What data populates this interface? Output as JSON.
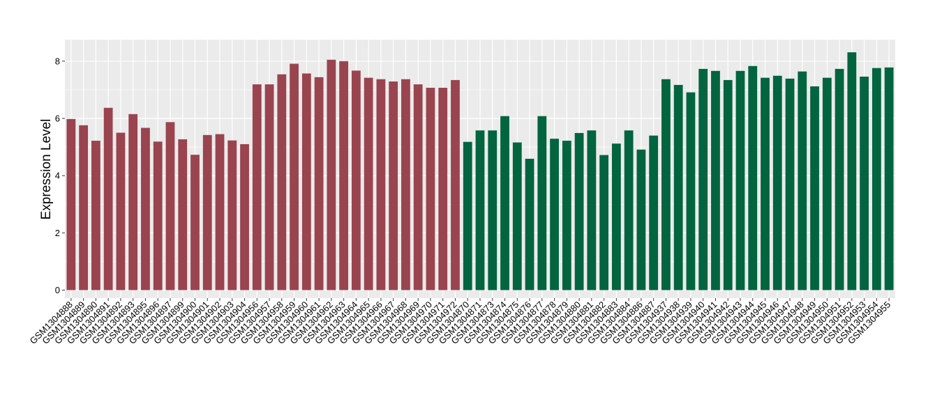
{
  "chart_data": {
    "type": "bar",
    "title": "",
    "xlabel": "",
    "ylabel": "Expression Level",
    "ylim": [
      -0.28,
      8.75
    ],
    "yticks": [
      0,
      2,
      4,
      6,
      8
    ],
    "grid": true,
    "legend": "none",
    "colors": {
      "group1": "#9a4450",
      "group2": "#036440",
      "panel": "#ebebeb",
      "grid": "#ffffff",
      "axis_tick": "#333333"
    },
    "categories": [
      "GSM1304888",
      "GSM1304889",
      "GSM1304890",
      "GSM1304891",
      "GSM1304892",
      "GSM1304893",
      "GSM1304895",
      "GSM1304896",
      "GSM1304897",
      "GSM1304899",
      "GSM1304900",
      "GSM1304901",
      "GSM1304902",
      "GSM1304903",
      "GSM1304904",
      "GSM1304956",
      "GSM1304957",
      "GSM1304958",
      "GSM1304959",
      "GSM1304960",
      "GSM1304961",
      "GSM1304962",
      "GSM1304963",
      "GSM1304964",
      "GSM1304965",
      "GSM1304966",
      "GSM1304967",
      "GSM1304968",
      "GSM1304969",
      "GSM1304970",
      "GSM1304971",
      "GSM1304972",
      "GSM1304870",
      "GSM1304871",
      "GSM1304873",
      "GSM1304874",
      "GSM1304875",
      "GSM1304876",
      "GSM1304877",
      "GSM1304878",
      "GSM1304879",
      "GSM1304880",
      "GSM1304881",
      "GSM1304882",
      "GSM1304883",
      "GSM1304884",
      "GSM1304886",
      "GSM1304887",
      "GSM1304937",
      "GSM1304938",
      "GSM1304939",
      "GSM1304940",
      "GSM1304941",
      "GSM1304942",
      "GSM1304943",
      "GSM1304944",
      "GSM1304945",
      "GSM1304946",
      "GSM1304947",
      "GSM1304948",
      "GSM1304949",
      "GSM1304950",
      "GSM1304951",
      "GSM1304952",
      "GSM1304953",
      "GSM1304954",
      "GSM1304955"
    ],
    "values": [
      5.98,
      5.76,
      5.22,
      6.37,
      5.5,
      6.15,
      5.67,
      5.19,
      5.87,
      5.27,
      4.73,
      5.42,
      5.45,
      5.23,
      5.1,
      7.19,
      7.19,
      7.54,
      7.91,
      7.57,
      7.44,
      8.05,
      8.0,
      7.67,
      7.42,
      7.37,
      7.29,
      7.37,
      7.19,
      7.07,
      7.07,
      7.34,
      5.18,
      5.58,
      5.58,
      6.08,
      5.16,
      4.59,
      6.08,
      5.29,
      5.22,
      5.49,
      5.58,
      4.72,
      5.12,
      5.58,
      4.91,
      5.4,
      7.37,
      7.17,
      6.91,
      7.73,
      7.66,
      7.34,
      7.66,
      7.83,
      7.42,
      7.49,
      7.39,
      7.64,
      7.12,
      7.42,
      7.73,
      8.31,
      7.46,
      7.76,
      7.78
    ],
    "groups": [
      1,
      1,
      1,
      1,
      1,
      1,
      1,
      1,
      1,
      1,
      1,
      1,
      1,
      1,
      1,
      1,
      1,
      1,
      1,
      1,
      1,
      1,
      1,
      1,
      1,
      1,
      1,
      1,
      1,
      1,
      1,
      1,
      2,
      2,
      2,
      2,
      2,
      2,
      2,
      2,
      2,
      2,
      2,
      2,
      2,
      2,
      2,
      2,
      2,
      2,
      2,
      2,
      2,
      2,
      2,
      2,
      2,
      2,
      2,
      2,
      2,
      2,
      2,
      2,
      2,
      2,
      2
    ]
  }
}
